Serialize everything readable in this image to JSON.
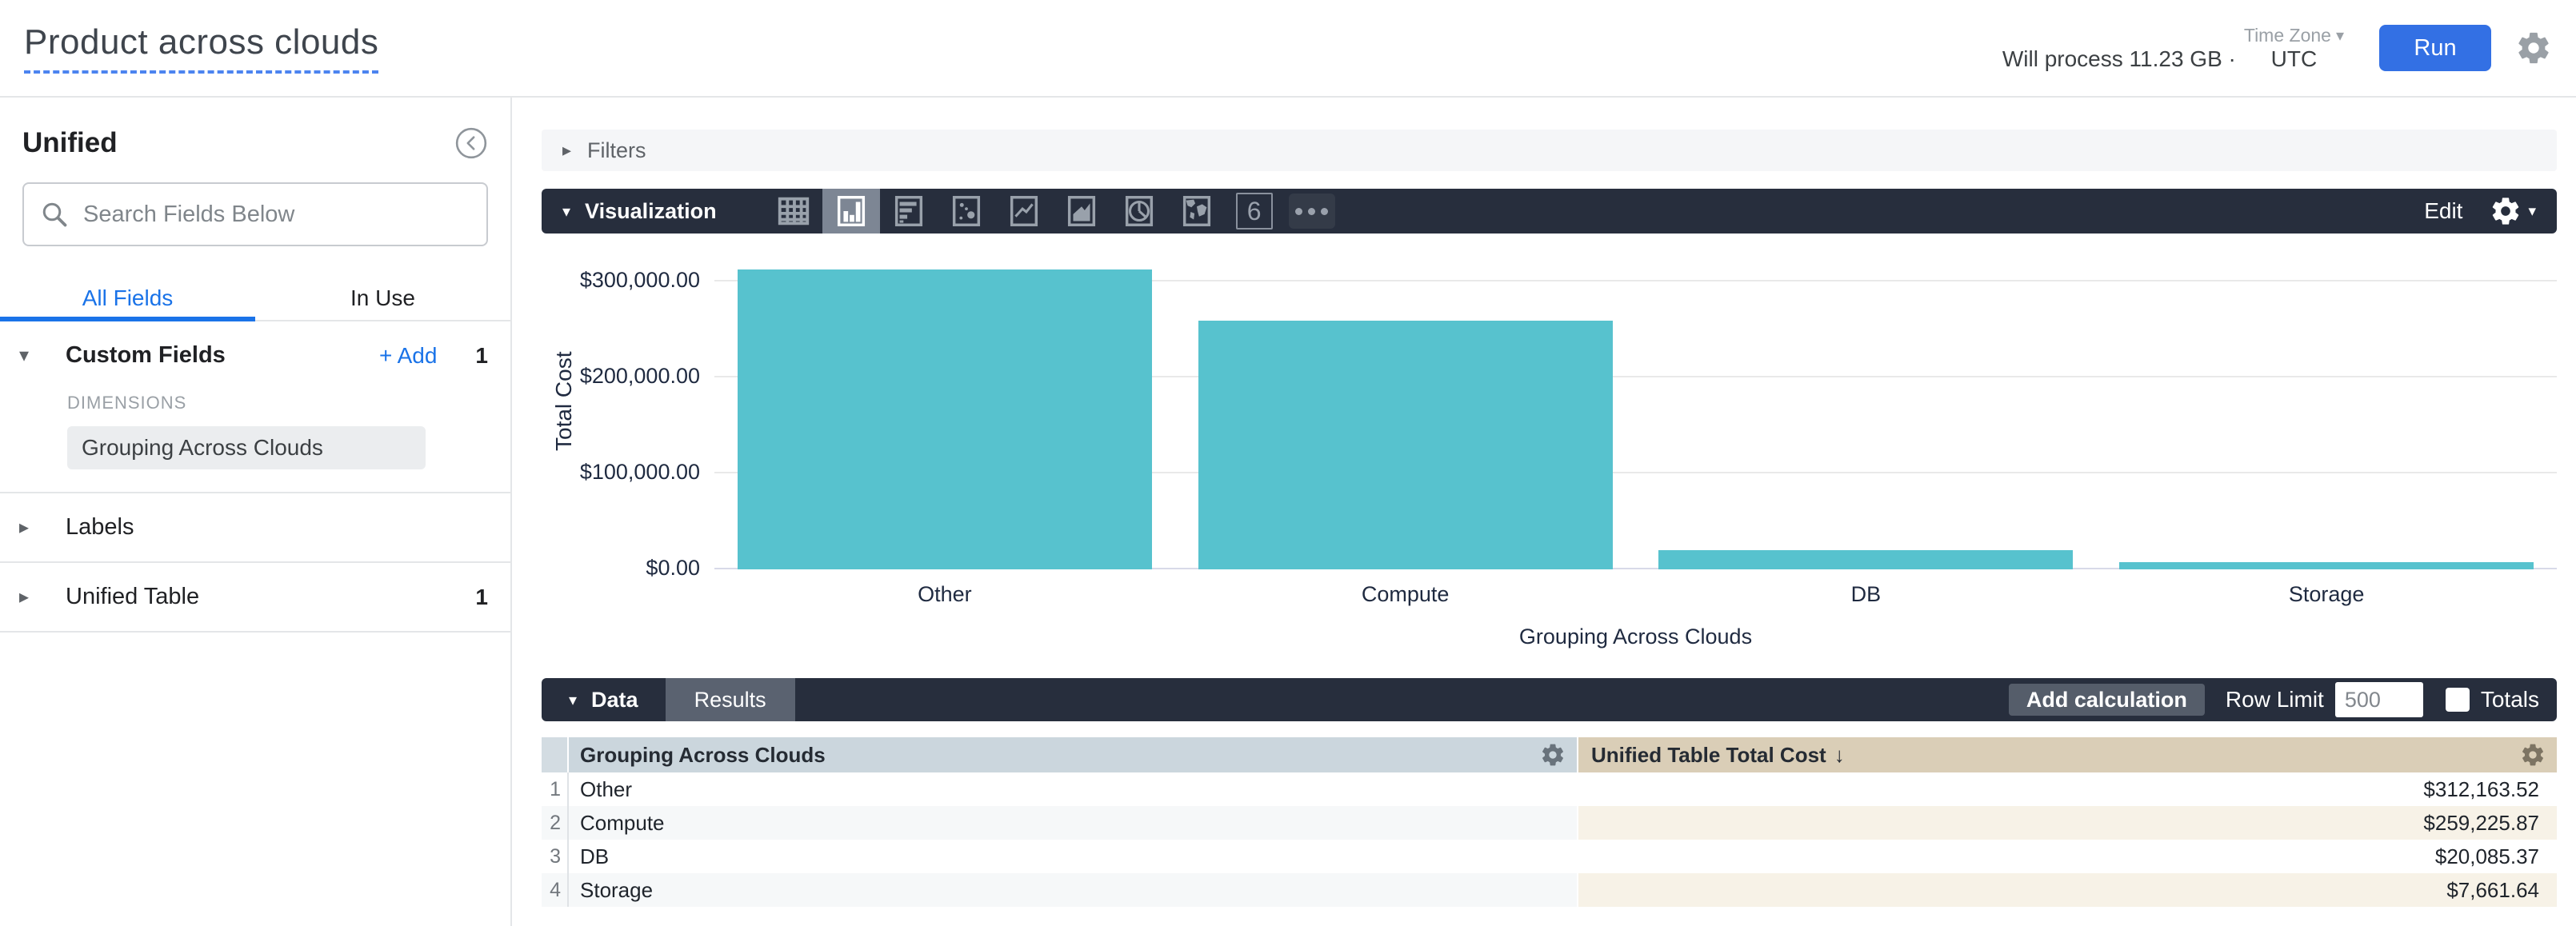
{
  "header": {
    "title": "Product across clouds",
    "process_info": "Will process 11.23 GB ·",
    "timezone_label": "Time Zone",
    "timezone_value": "UTC",
    "run_label": "Run"
  },
  "glyphs": {
    "caret_down": "▾",
    "caret_right": "▸",
    "chevron_small": "▾"
  },
  "sidebar": {
    "view_name": "Unified",
    "search_placeholder": "Search Fields Below",
    "tabs": {
      "all_fields": "All Fields",
      "in_use": "In Use"
    },
    "custom_fields": {
      "label": "Custom Fields",
      "add_label": "+ Add",
      "count": "1",
      "group_label": "DIMENSIONS",
      "field": "Grouping Across Clouds"
    },
    "labels_section": {
      "label": "Labels"
    },
    "unified_table_section": {
      "label": "Unified Table",
      "count": "1"
    }
  },
  "filters": {
    "label": "Filters"
  },
  "visualization": {
    "label": "Visualization",
    "edit_label": "Edit",
    "single_value_glyph": "6",
    "icon_names": [
      "table",
      "column",
      "bar",
      "scatter",
      "line",
      "area",
      "pie",
      "map",
      "single-value",
      "more"
    ]
  },
  "chart_data": {
    "type": "bar",
    "categories": [
      "Other",
      "Compute",
      "DB",
      "Storage"
    ],
    "values": [
      312163.52,
      259225.87,
      20085.37,
      7661.64
    ],
    "xlabel": "Grouping Across Clouds",
    "ylabel": "Total Cost",
    "ylim": [
      0,
      300000
    ],
    "yticks": [
      {
        "value": 0,
        "label": "$0.00"
      },
      {
        "value": 100000,
        "label": "$100,000.00"
      },
      {
        "value": 200000,
        "label": "$200,000.00"
      },
      {
        "value": 300000,
        "label": "$300,000.00"
      }
    ],
    "bar_color": "#57C2CE",
    "grid": "horizontal",
    "legend": "none"
  },
  "data_panel": {
    "data_tab": "Data",
    "results_tab": "Results",
    "add_calculation": "Add calculation",
    "row_limit_label": "Row Limit",
    "row_limit_value": "500",
    "totals_label": "Totals"
  },
  "table": {
    "columns": [
      {
        "label": "Grouping Across Clouds",
        "sort": ""
      },
      {
        "label": "Unified Table Total Cost",
        "sort": "↓"
      }
    ],
    "rows": [
      {
        "num": "1",
        "dimension": "Other",
        "value": "$312,163.52"
      },
      {
        "num": "2",
        "dimension": "Compute",
        "value": "$259,225.87"
      },
      {
        "num": "3",
        "dimension": "DB",
        "value": "$20,085.37"
      },
      {
        "num": "4",
        "dimension": "Storage",
        "value": "$7,661.64"
      }
    ]
  }
}
